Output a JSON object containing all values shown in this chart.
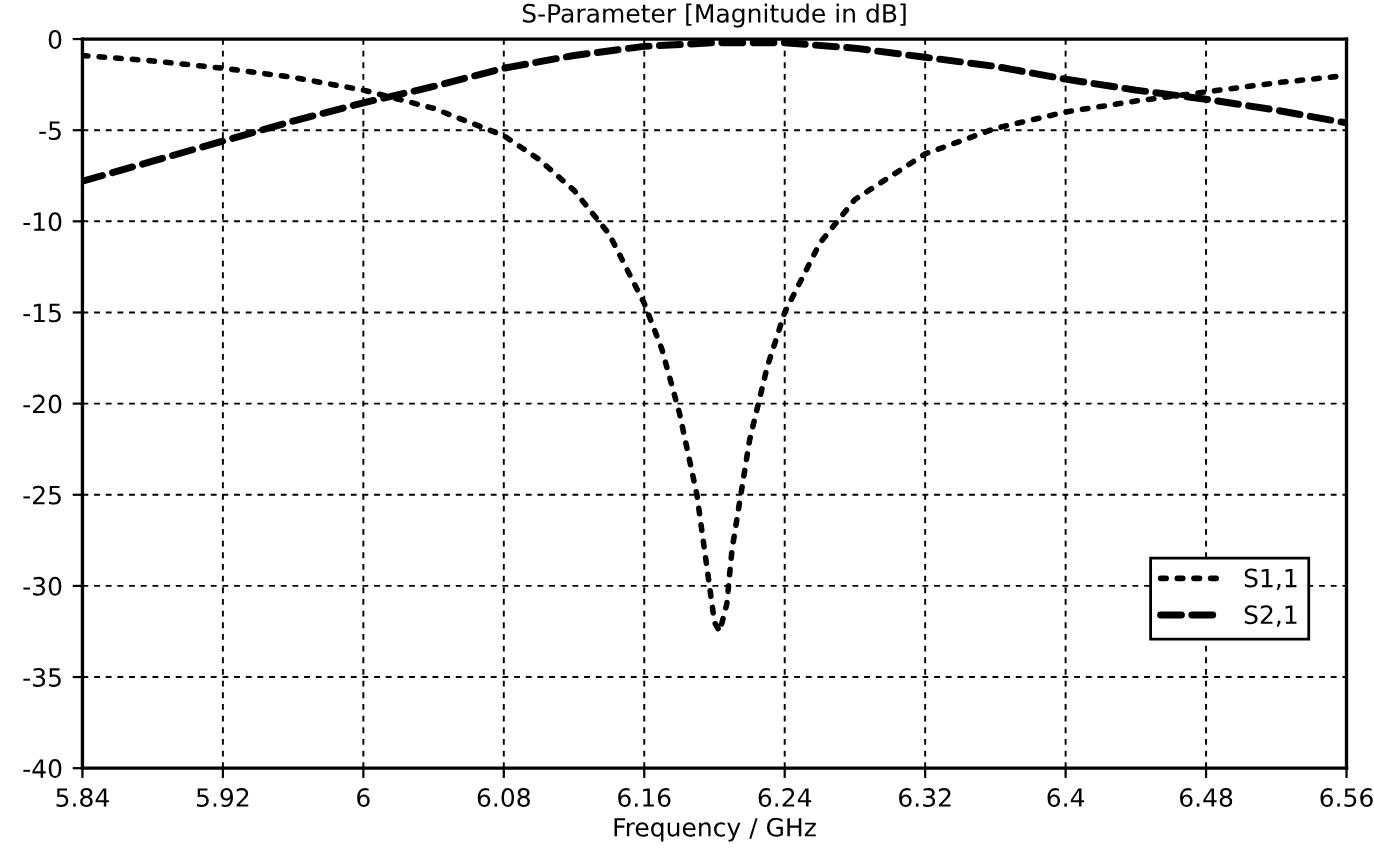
{
  "chart_data": {
    "type": "line",
    "title": "S-Parameter [Magnitude in dB]",
    "xlabel": "Frequency / GHz",
    "xlim": [
      5.84,
      6.56
    ],
    "xticks": [
      5.84,
      5.92,
      6,
      6.08,
      6.16,
      6.24,
      6.32,
      6.4,
      6.48,
      6.56
    ],
    "ylim": [
      -40,
      0
    ],
    "yticks": [
      -40,
      -35,
      -30,
      -25,
      -20,
      -15,
      -10,
      -5,
      0
    ],
    "grid": true,
    "legend": "lower right",
    "series": [
      {
        "name": "S1,1",
        "color": "#000000",
        "line_style": "dotted",
        "x": [
          5.84,
          5.88,
          5.92,
          5.96,
          6.0,
          6.04,
          6.08,
          6.1,
          6.12,
          6.14,
          6.16,
          6.17,
          6.18,
          6.19,
          6.195,
          6.2,
          6.203,
          6.207,
          6.21,
          6.22,
          6.23,
          6.24,
          6.26,
          6.28,
          6.32,
          6.36,
          6.4,
          6.44,
          6.48,
          6.52,
          6.56
        ],
        "values": [
          -0.9,
          -1.2,
          -1.6,
          -2.1,
          -2.8,
          -3.8,
          -5.3,
          -6.6,
          -8.3,
          -10.7,
          -14.5,
          -17,
          -20.5,
          -25,
          -28.5,
          -32,
          -32.5,
          -31,
          -28,
          -22,
          -18,
          -15,
          -11.2,
          -8.8,
          -6.3,
          -4.9,
          -4.0,
          -3.4,
          -2.9,
          -2.4,
          -2.0
        ]
      },
      {
        "name": "S2,1",
        "color": "#000000",
        "line_style": "dashed",
        "x": [
          5.84,
          5.88,
          5.92,
          5.96,
          6.0,
          6.04,
          6.08,
          6.12,
          6.16,
          6.2,
          6.24,
          6.28,
          6.32,
          6.36,
          6.4,
          6.44,
          6.48,
          6.52,
          6.56
        ],
        "values": [
          -7.8,
          -6.7,
          -5.6,
          -4.5,
          -3.5,
          -2.6,
          -1.6,
          -0.9,
          -0.4,
          -0.2,
          -0.2,
          -0.5,
          -1.0,
          -1.5,
          -2.2,
          -2.8,
          -3.3,
          -3.9,
          -4.6
        ]
      }
    ]
  }
}
